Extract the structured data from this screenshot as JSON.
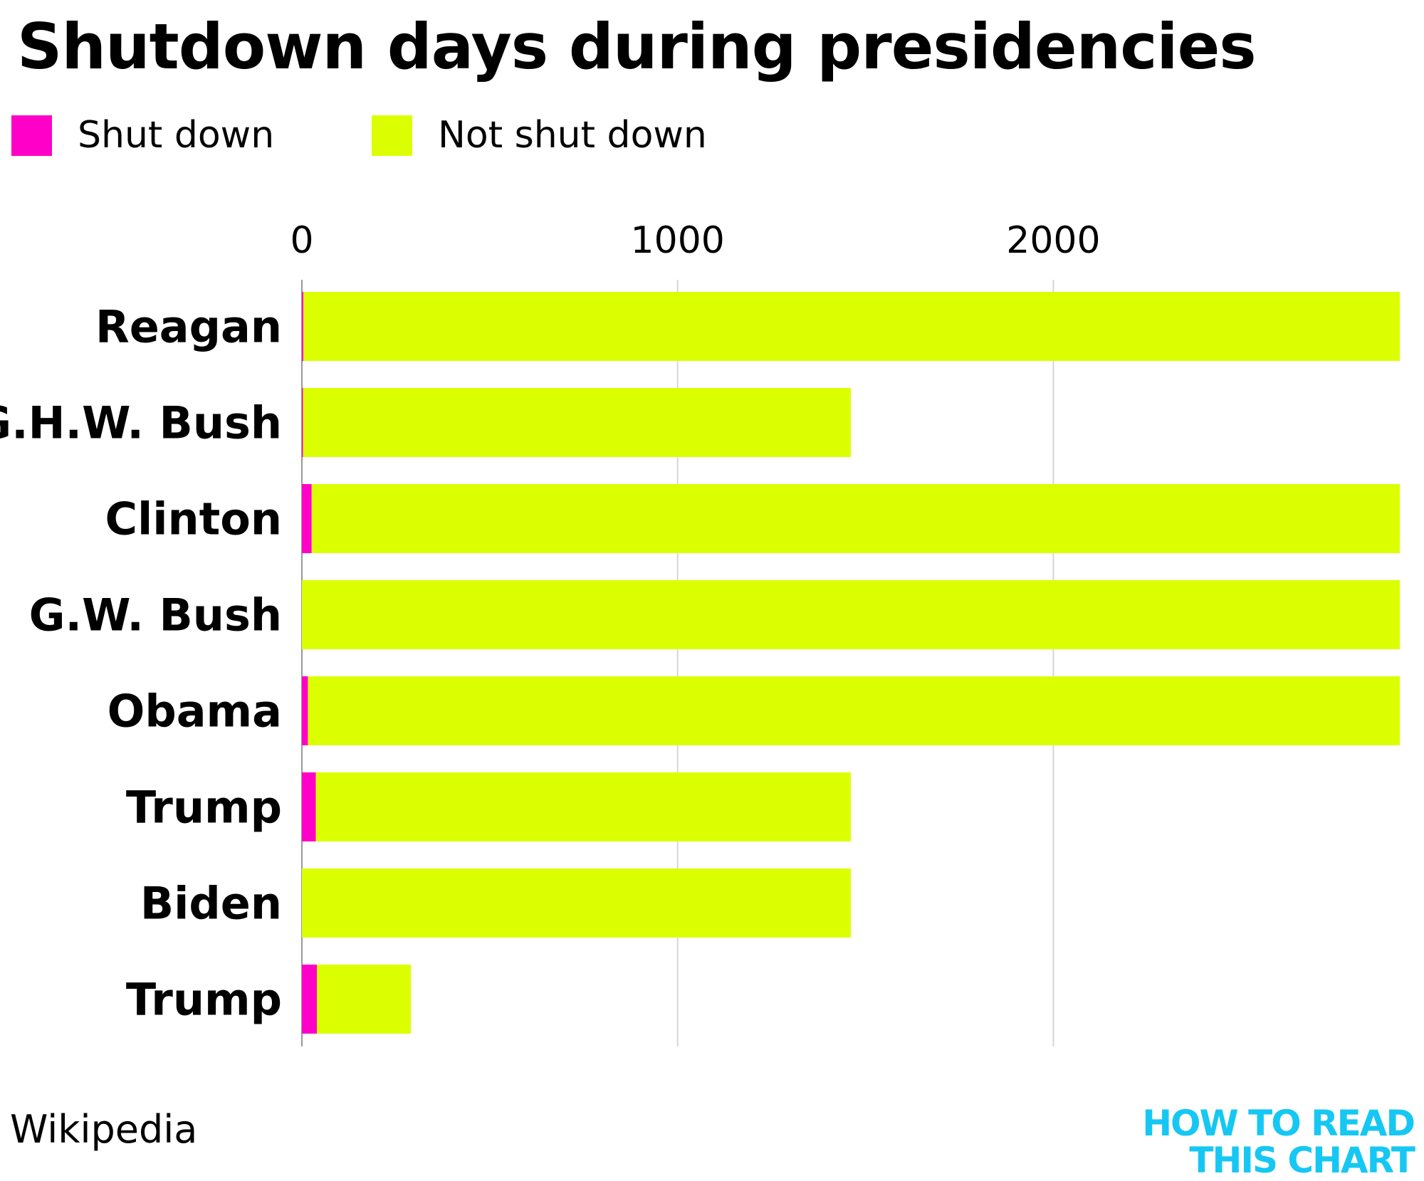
{
  "title": "Shutdown days during presidencies",
  "legend": [
    {
      "label": "Shut down",
      "color": "#ff00c8"
    },
    {
      "label": "Not shut down",
      "color": "#dcff00"
    }
  ],
  "source": "Wikipedia",
  "brand": {
    "line1": "HOW TO READ",
    "line2": "THIS CHART",
    "color": "#16c7f3"
  },
  "chart_data": {
    "type": "bar",
    "orientation": "horizontal",
    "stacked": true,
    "title": "Shutdown days during presidencies",
    "categories": [
      "Reagan",
      "G.H.W. Bush",
      "Clinton",
      "G.W. Bush",
      "Obama",
      "Trump",
      "Biden",
      "Trump"
    ],
    "series": [
      {
        "name": "Shut down",
        "color": "#ff00c8",
        "values": [
          4,
          3,
          26,
          0,
          16,
          37,
          0,
          40
        ]
      },
      {
        "name": "Not shut down",
        "color": "#dcff00",
        "values": [
          2918,
          1458,
          2896,
          2922,
          2906,
          1424,
          1461,
          250
        ]
      }
    ],
    "xticks": [
      "0",
      "1000",
      "2000"
    ],
    "xtick_values": [
      0,
      1000,
      2000
    ],
    "xlim": [
      0,
      2922
    ],
    "xlabel": "",
    "ylabel": "",
    "grid": true,
    "axis_position": "top",
    "legend_position": "top-left"
  }
}
